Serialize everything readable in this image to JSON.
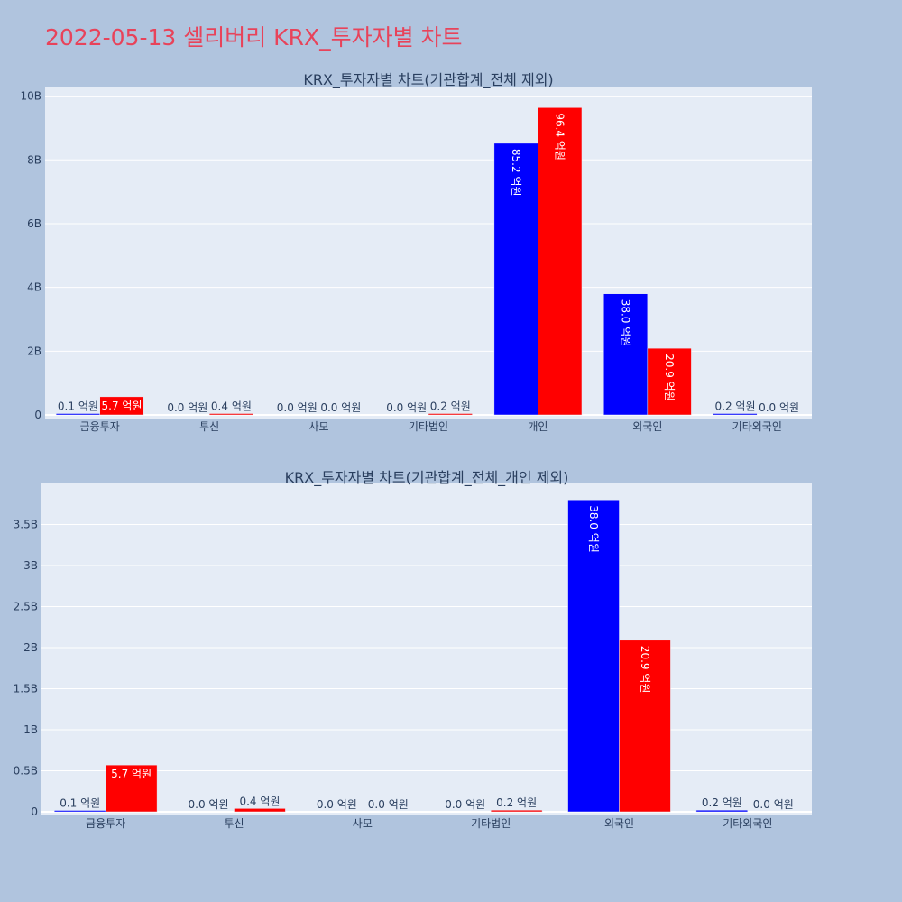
{
  "title": "2022-05-13 셀리버리 KRX_투자자별 차트",
  "colors": {
    "buy": "#0000ff",
    "sell": "#ff0000",
    "plot_bg": "#e5ecf6",
    "paper_bg": "#b0c4de",
    "title": "#e8435a"
  },
  "chart_data": [
    {
      "type": "bar",
      "title": "KRX_투자자별 차트(기관합계_전체 제외)",
      "categories": [
        "금융투자",
        "투신",
        "사모",
        "기타법인",
        "개인",
        "외국인",
        "기타외국인"
      ],
      "series": [
        {
          "color": "#0000ff",
          "values": [
            10000000,
            0,
            0,
            0,
            8520000000,
            3800000000,
            20000000
          ],
          "labels": [
            "0.1 억원",
            "0.0 억원",
            "0.0 억원",
            "0.0 억원",
            "85.2 억원",
            "38.0 억원",
            "0.2 억원"
          ]
        },
        {
          "color": "#ff0000",
          "values": [
            570000000,
            40000000,
            0,
            20000000,
            9640000000,
            2090000000,
            0
          ],
          "labels": [
            "5.7 억원",
            "0.4 억원",
            "0.0 억원",
            "0.2 억원",
            "96.4 억원",
            "20.9 억원",
            "0.0 억원"
          ]
        }
      ],
      "ylim": [
        0,
        10300000000
      ],
      "yticks": [
        0,
        2000000000,
        4000000000,
        6000000000,
        8000000000,
        10000000000
      ],
      "ytick_labels": [
        "0",
        "2B",
        "4B",
        "6B",
        "8B",
        "10B"
      ],
      "grid": true,
      "legend": "none"
    },
    {
      "type": "bar",
      "title": "KRX_투자자별 차트(기관합계_전체_개인 제외)",
      "categories": [
        "금융투자",
        "투신",
        "사모",
        "기타법인",
        "외국인",
        "기타외국인"
      ],
      "series": [
        {
          "color": "#0000ff",
          "values": [
            10000000,
            0,
            0,
            0,
            3800000000,
            20000000
          ],
          "labels": [
            "0.1 억원",
            "0.0 억원",
            "0.0 억원",
            "0.0 억원",
            "38.0 억원",
            "0.2 억원"
          ]
        },
        {
          "color": "#ff0000",
          "values": [
            570000000,
            40000000,
            0,
            20000000,
            2090000000,
            0
          ],
          "labels": [
            "5.7 억원",
            "0.4 억원",
            "0.0 억원",
            "0.2 억원",
            "20.9 억원",
            "0.0 억원"
          ]
        }
      ],
      "ylim": [
        0,
        4000000000
      ],
      "yticks": [
        0,
        500000000,
        1000000000,
        1500000000,
        2000000000,
        2500000000,
        3000000000,
        3500000000
      ],
      "ytick_labels": [
        "0",
        "0.5B",
        "1B",
        "1.5B",
        "2B",
        "2.5B",
        "3B",
        "3.5B"
      ],
      "grid": true,
      "legend": "none"
    }
  ]
}
